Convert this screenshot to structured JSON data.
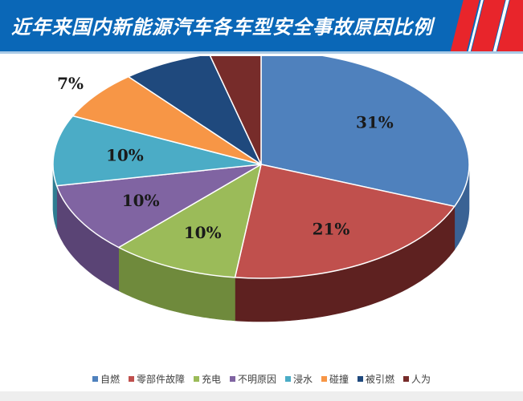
{
  "header": {
    "title": "近年来国内新能源汽车各车型安全事故原因比例"
  },
  "chart_data": {
    "type": "pie",
    "title": "近年来国内新能源汽车各车型安全事故原因比例",
    "start_angle_deg": 90,
    "direction": "clockwise",
    "style": "3d",
    "legend_position": "bottom",
    "slices": [
      {
        "label": "自燃",
        "value": 31,
        "display": "31%",
        "color": "#4f81bd",
        "side": "#3a6294"
      },
      {
        "label": "零部件故障",
        "value": 21,
        "display": "21%",
        "color": "#c0504d",
        "side": "#5e2120"
      },
      {
        "label": "充电",
        "value": 10,
        "display": "10%",
        "color": "#9bbb59",
        "side": "#6f8a3c"
      },
      {
        "label": "不明原因",
        "value": 10,
        "display": "10%",
        "color": "#8064a2",
        "side": "#5a4475"
      },
      {
        "label": "浸水",
        "value": 10,
        "display": "10%",
        "color": "#4bacc6",
        "side": "#2f7d92"
      },
      {
        "label": "碰撞",
        "value": 7,
        "display": "7%",
        "color": "#f79646",
        "side": "#b86a28"
      },
      {
        "label": "被引燃",
        "value": 7,
        "display": "7%",
        "color": "#1f497d",
        "side": "#14304f"
      },
      {
        "label": "人为",
        "value": 4,
        "display": "4%",
        "color": "#772c2a",
        "side": "#4d1b1a"
      }
    ]
  }
}
